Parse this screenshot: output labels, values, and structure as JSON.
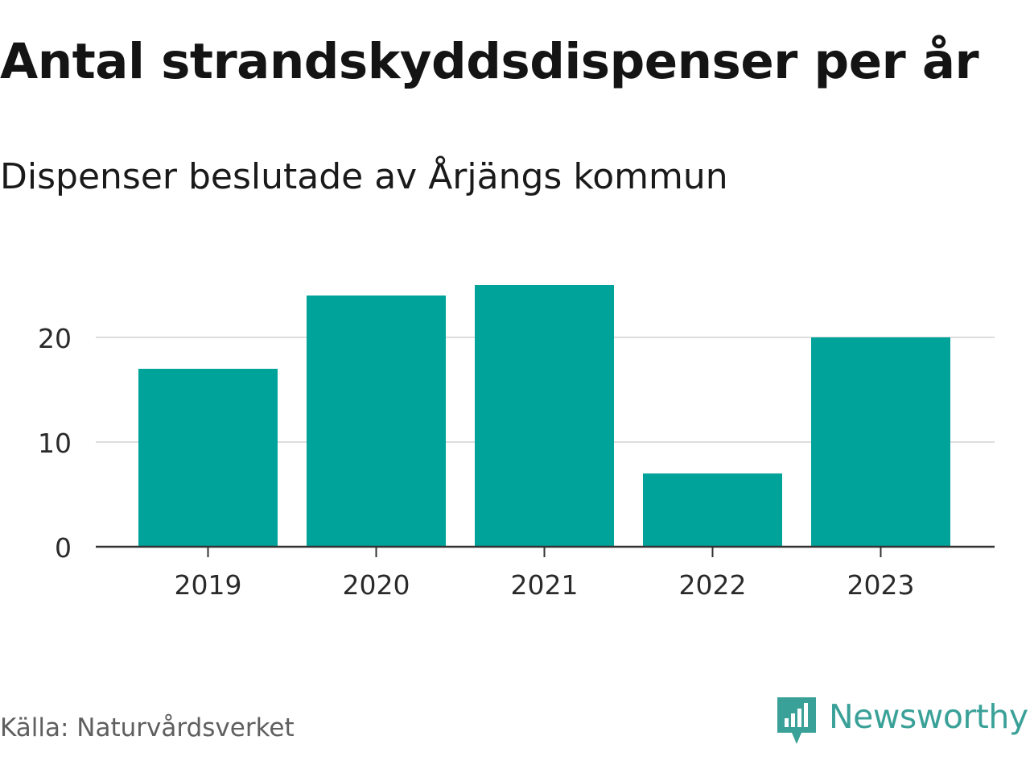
{
  "header": {
    "title": "Antal strandskyddsdispenser per år",
    "subtitle": "Dispenser beslutade av Årjängs kommun"
  },
  "footer": {
    "source": "Källa: Naturvårdsverket",
    "brand": "Newsworthy"
  },
  "colors": {
    "bar": "#00a39a",
    "gridline": "#dddddd",
    "axis": "#333333",
    "brand": "#3aa198"
  },
  "icons": {
    "brand_logo": "bar-chart-speech-bubble-icon"
  },
  "chart_data": {
    "type": "bar",
    "title": "Antal strandskyddsdispenser per år",
    "subtitle": "Dispenser beslutade av Årjängs kommun",
    "xlabel": "",
    "ylabel": "",
    "categories": [
      "2019",
      "2020",
      "2021",
      "2022",
      "2023"
    ],
    "values": [
      17,
      24,
      25,
      7,
      20
    ],
    "ylim": [
      0,
      26
    ],
    "yticks": [
      0,
      10,
      20
    ],
    "grid": true,
    "legend": "none"
  }
}
